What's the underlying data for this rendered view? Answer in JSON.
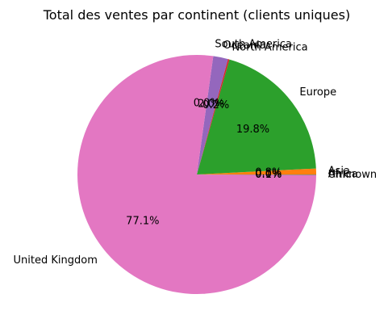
{
  "chart_data": {
    "type": "pie",
    "title": "Total des ventes par continent (clients uniques)",
    "slices": [
      {
        "label": "Africa",
        "value": 0.0,
        "pct_text": "0.0%",
        "color": "#1f77b4"
      },
      {
        "label": "Asia",
        "value": 0.8,
        "pct_text": "0.8%",
        "color": "#ff7f0e"
      },
      {
        "label": "Europe",
        "value": 19.8,
        "pct_text": "19.8%",
        "color": "#2ca02c"
      },
      {
        "label": "North America",
        "value": 0.2,
        "pct_text": "0.2%",
        "color": "#d62728"
      },
      {
        "label": "Oceania",
        "value": 2.0,
        "pct_text": "2.0%",
        "color": "#9467bd"
      },
      {
        "label": "South America",
        "value": 0.0,
        "pct_text": "0.0%",
        "color": "#8c564b"
      },
      {
        "label": "United Kingdom",
        "value": 77.1,
        "pct_text": "77.1%",
        "color": "#e377c2"
      },
      {
        "label": "Unknown",
        "value": 0.1,
        "pct_text": "0.1%",
        "color": "#7f7f7f"
      }
    ],
    "start_angle_deg": 0,
    "counterclock": true
  }
}
